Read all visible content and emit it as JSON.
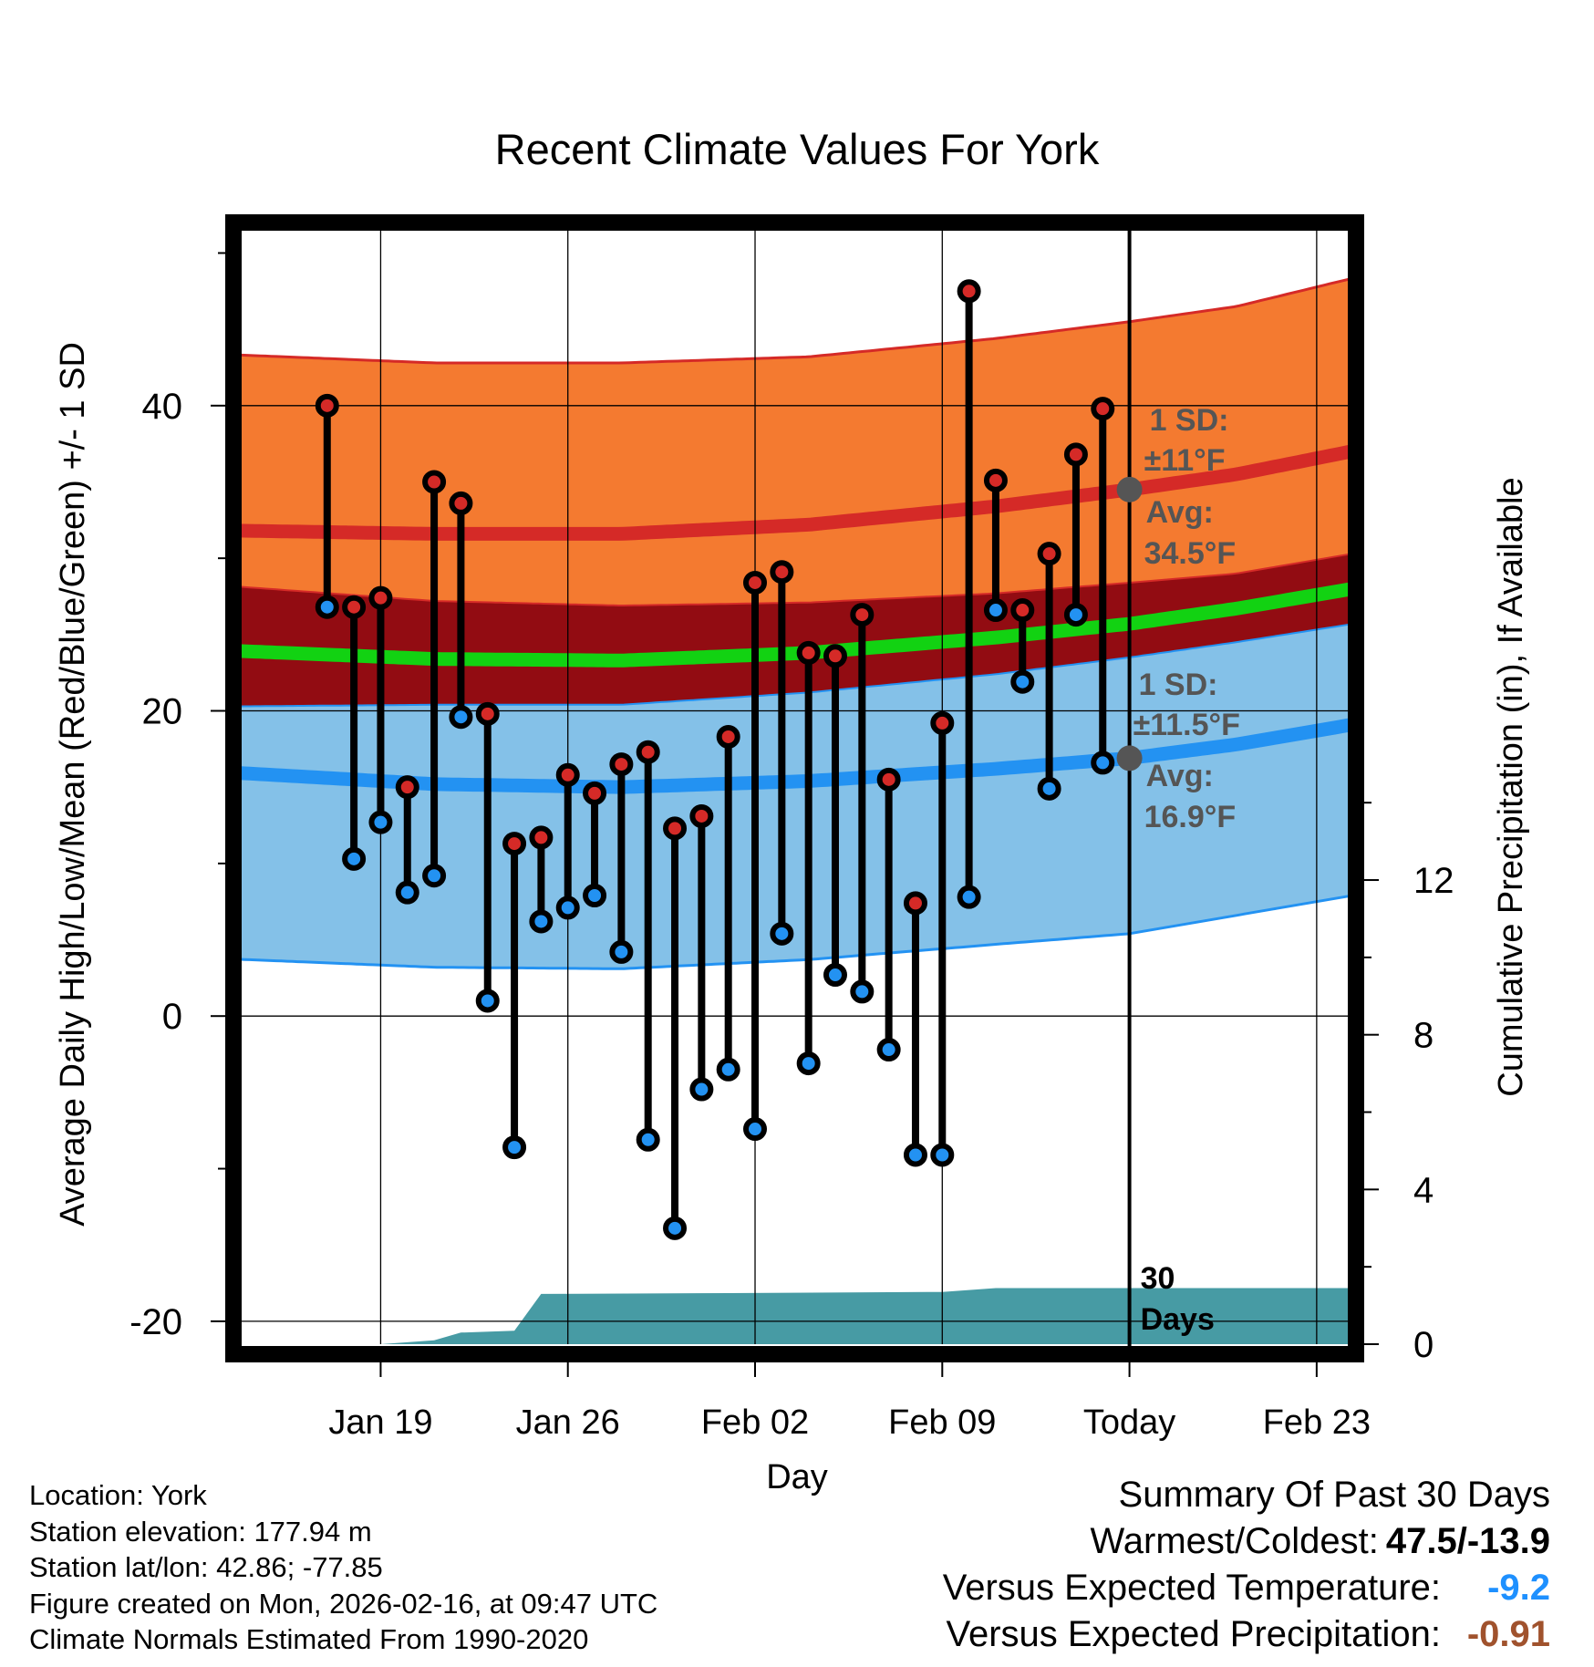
{
  "chart_data": {
    "type": "range-dot",
    "title": "Recent Climate Values For York",
    "xlabel": "Day",
    "ylabel_left": "Average Daily High/Low/Mean (Red/Blue/Green) +/- 1 SD",
    "ylabel_right": "Cumulative Precipitation (in), If Available",
    "y_ticks_left": [
      -20,
      0,
      20,
      40
    ],
    "y_range_left": [
      -21.5,
      52
    ],
    "y_ticks_right": [
      0,
      4,
      8,
      12
    ],
    "y_range_right": [
      0,
      29
    ],
    "x_range_days": [
      -33.3,
      8.3
    ],
    "x_ticks": [
      {
        "day": -28,
        "label": "Jan 19"
      },
      {
        "day": -21,
        "label": "Jan 26"
      },
      {
        "day": -14,
        "label": "Feb 02"
      },
      {
        "day": -7,
        "label": "Feb 09"
      },
      {
        "day": 0,
        "label": "Today"
      },
      {
        "day": 7,
        "label": "Feb 23"
      }
    ],
    "daily": [
      {
        "day": -30,
        "high": 40,
        "low": 26.8
      },
      {
        "day": -29,
        "high": 26.8,
        "low": 10.3
      },
      {
        "day": -28,
        "high": 27.4,
        "low": 12.7
      },
      {
        "day": -27,
        "high": 15,
        "low": 8.1
      },
      {
        "day": -26,
        "high": 35,
        "low": 9.2
      },
      {
        "day": -25,
        "high": 33.6,
        "low": 19.6
      },
      {
        "day": -24,
        "high": 19.8,
        "low": 1
      },
      {
        "day": -23,
        "high": 11.3,
        "low": -8.6
      },
      {
        "day": -22,
        "high": 11.7,
        "low": 6.2
      },
      {
        "day": -21,
        "high": 15.8,
        "low": 7.1
      },
      {
        "day": -20,
        "high": 14.6,
        "low": 7.9
      },
      {
        "day": -19,
        "high": 16.5,
        "low": 4.2
      },
      {
        "day": -18,
        "high": 17.3,
        "low": -8.1
      },
      {
        "day": -17,
        "high": 12.3,
        "low": -13.9
      },
      {
        "day": -16,
        "high": 13.1,
        "low": -4.8
      },
      {
        "day": -15,
        "high": 18.3,
        "low": -3.5
      },
      {
        "day": -14,
        "high": 28.4,
        "low": -7.4
      },
      {
        "day": -13,
        "high": 29.1,
        "low": 5.4
      },
      {
        "day": -12,
        "high": 23.8,
        "low": -3.1
      },
      {
        "day": -11,
        "high": 23.6,
        "low": 2.7
      },
      {
        "day": -10,
        "high": 26.3,
        "low": 1.6
      },
      {
        "day": -9,
        "high": 15.5,
        "low": -2.2
      },
      {
        "day": -8,
        "high": 7.4,
        "low": -9.1
      },
      {
        "day": -7,
        "high": 19.2,
        "low": -9.1
      },
      {
        "day": -6,
        "high": 47.5,
        "low": 7.8
      },
      {
        "day": -5,
        "high": 35.1,
        "low": 26.6
      },
      {
        "day": -4,
        "high": 26.6,
        "low": 21.9
      },
      {
        "day": -3,
        "high": 30.3,
        "low": 14.9
      },
      {
        "day": -2,
        "high": 36.8,
        "low": 26.3
      },
      {
        "day": -1,
        "high": 39.8,
        "low": 16.6
      }
    ],
    "normals": [
      {
        "day": -33,
        "high": 31.8,
        "low": 15.9,
        "mean": 23.9,
        "high_sd": 11.5,
        "low_sd": 12.2
      },
      {
        "day": -26,
        "high": 31.6,
        "low": 15.2,
        "mean": 23.4,
        "high_sd": 11.2,
        "low_sd": 12.0
      },
      {
        "day": -19,
        "high": 31.6,
        "low": 15.0,
        "mean": 23.3,
        "high_sd": 11.2,
        "low_sd": 11.9
      },
      {
        "day": -12,
        "high": 32.2,
        "low": 15.4,
        "mean": 23.8,
        "high_sd": 11.0,
        "low_sd": 11.7
      },
      {
        "day": -5,
        "high": 33.4,
        "low": 16.2,
        "mean": 24.8,
        "high_sd": 11.0,
        "low_sd": 11.5
      },
      {
        "day": 0,
        "high": 34.5,
        "low": 16.9,
        "mean": 25.7,
        "high_sd": 11.0,
        "low_sd": 11.5
      },
      {
        "day": 4,
        "high": 35.5,
        "low": 17.8,
        "mean": 26.7,
        "high_sd": 11.0,
        "low_sd": 11.2
      },
      {
        "day": 8,
        "high": 36.9,
        "low": 19.0,
        "mean": 27.9,
        "high_sd": 11.3,
        "low_sd": 11.2
      }
    ],
    "precip": [
      {
        "day": -33.3,
        "value": 0
      },
      {
        "day": -28,
        "value": 0
      },
      {
        "day": -26,
        "value": 0.1
      },
      {
        "day": -25,
        "value": 0.3
      },
      {
        "day": -23,
        "value": 0.35
      },
      {
        "day": -22,
        "value": 1.3
      },
      {
        "day": -15,
        "value": 1.32
      },
      {
        "day": -7,
        "value": 1.35
      },
      {
        "day": -5,
        "value": 1.45
      },
      {
        "day": 0,
        "value": 1.45
      },
      {
        "day": 8.3,
        "value": 1.45
      }
    ],
    "annotations": {
      "high_sd": {
        "line1": "1 SD:",
        "line2": "±11°F"
      },
      "high_avg": {
        "line1": "Avg:",
        "line2": "34.5°F",
        "value": 34.5
      },
      "low_sd": {
        "line1": "1 SD:",
        "line2": "±11.5°F"
      },
      "low_avg": {
        "line1": "Avg:",
        "line2": "16.9°F",
        "value": 16.9
      },
      "period": {
        "line1": "30",
        "line2": "Days"
      }
    }
  },
  "footer": {
    "location": "Location: York",
    "elevation": "Station elevation: 177.94 m",
    "latlon": "Station lat/lon: 42.86; -77.85",
    "created": "Figure created on Mon, 2026-02-16, at 09:47 UTC",
    "normals": "Climate Normals Estimated From 1990-2020"
  },
  "summary": {
    "title": "Summary Of Past 30 Days",
    "warmest_label": "Warmest/Coldest:",
    "warmest_value": "47.5/-13.9",
    "temp_label": "Versus Expected Temperature:",
    "temp_value": "-9.2",
    "precip_label": "Versus Expected Precipitation:",
    "precip_value": "-0.91"
  },
  "colors": {
    "high_band": "#f47a30",
    "high_line": "#d52a27",
    "mean_band": "#920c12",
    "mean_line": "#12d212",
    "low_band": "#84c1e8",
    "low_line": "#2392f2",
    "precip": "#479ba4",
    "high_dot": "#d52a27",
    "low_dot": "#2392f2",
    "avg_dot": "#555555",
    "annotation": "#555555"
  }
}
